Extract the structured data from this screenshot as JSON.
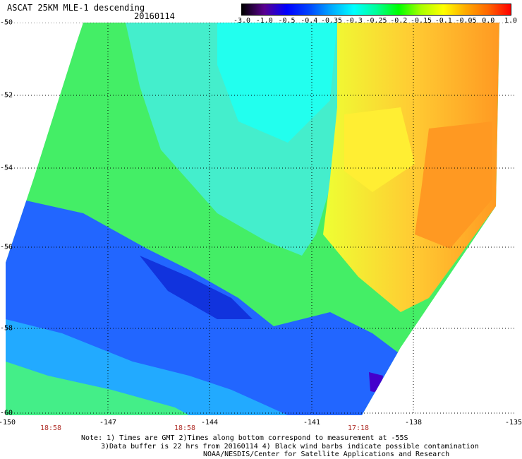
{
  "header": {
    "title": "ASCAT 25KM MLE-1 descending",
    "date": "20160114"
  },
  "colorbar": {
    "ticks": [
      "-3.0",
      "-1.0",
      "-0.5",
      "-0.4",
      "-0.35",
      "-0.3",
      "-0.25",
      "-0.2",
      "-0.15",
      "-0.1",
      "-0.05",
      "0.0",
      "1.0"
    ],
    "colors": [
      "#000000",
      "#5a0090",
      "#0000ff",
      "#0044ff",
      "#00aaff",
      "#00ffff",
      "#00ff99",
      "#00ff00",
      "#aaff00",
      "#ffff00",
      "#ffaa00",
      "#ff6600",
      "#ff0000"
    ]
  },
  "map": {
    "lat_labels": [
      "-50",
      "-52",
      "-54",
      "-56",
      "-58",
      "-60"
    ],
    "lon_labels": [
      "-150",
      "-147",
      "-144",
      "-141",
      "-138",
      "-135"
    ],
    "time_labels": [
      "18:58",
      "18:58",
      "17:18"
    ]
  },
  "notes": {
    "line1": "Note: 1) Times are GMT 2)Times along bottom correspond to measurement at -55S",
    "line2": "3)Data buffer is 22 hrs from 20160114 4) Black wind barbs indicate possible contamination",
    "line3": "NOAA/NESDIS/Center for Satellite Applications and Research"
  }
}
